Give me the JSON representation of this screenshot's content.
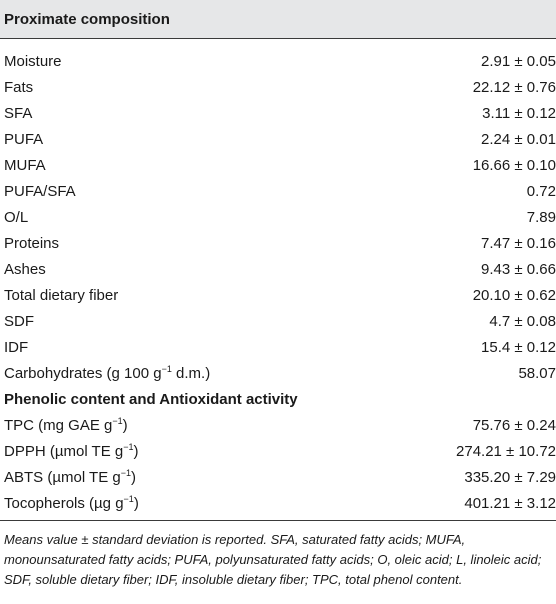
{
  "header": {
    "title": "Proximate composition"
  },
  "rows_proximate": [
    {
      "label": "Moisture",
      "value": "2.91 ± 0.05"
    },
    {
      "label": "Fats",
      "value": "22.12 ± 0.76"
    },
    {
      "label": "SFA",
      "value": "3.11 ± 0.12"
    },
    {
      "label": "PUFA",
      "value": "2.24 ± 0.01"
    },
    {
      "label": "MUFA",
      "value": "16.66 ± 0.10"
    },
    {
      "label": "PUFA/SFA",
      "value": "0.72"
    },
    {
      "label": "O/L",
      "value": "7.89"
    },
    {
      "label": "Proteins",
      "value": "7.47 ± 0.16"
    },
    {
      "label": "Ashes",
      "value": "9.43 ± 0.66"
    },
    {
      "label": "Total dietary fiber",
      "value": "20.10 ± 0.62"
    },
    {
      "label": "SDF",
      "value": "4.7 ± 0.08"
    },
    {
      "label": "IDF",
      "value": "15.4 ± 0.12"
    },
    {
      "label_pre": "Carbohydrates (g 100 g",
      "label_sup": "−1",
      "label_post": " d.m.)",
      "value": "58.07"
    }
  ],
  "section2": {
    "title": "Phenolic content and Antioxidant activity"
  },
  "rows_phenolic": [
    {
      "label_pre": "TPC (mg GAE g",
      "label_sup": "−1",
      "label_post": ")",
      "value": "75.76 ± 0.24"
    },
    {
      "label_pre": "DPPH (µmol TE g",
      "label_sup": "−1",
      "label_post": ")",
      "value": "274.21 ± 10.72"
    },
    {
      "label_pre": "ABTS (µmol TE g",
      "label_sup": "−1",
      "label_post": ")",
      "value": "335.20 ± 7.29"
    },
    {
      "label_pre": "Tocopherols (µg g",
      "label_sup": "−1",
      "label_post": ")",
      "value": "401.21 ± 3.12"
    }
  ],
  "footnote": "Means value ± standard deviation is reported. SFA, saturated fatty acids; MUFA, monounsaturated fatty acids; PUFA, polyunsaturated fatty acids; O, oleic acid; L, linoleic acid; SDF, soluble dietary fiber; IDF, insoluble dietary fiber; TPC, total phenol content.",
  "colors": {
    "header_bg": "#e6e7e8",
    "rule": "#3a3a3a",
    "text": "#1a1a1a"
  }
}
